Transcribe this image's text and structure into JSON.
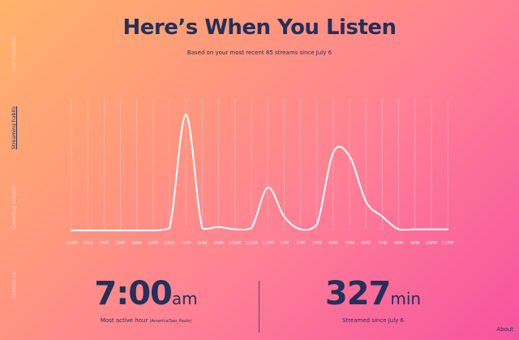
{
  "nav": {
    "items": [
      {
        "label": "Your Favorites",
        "active": false
      },
      {
        "label": "Streaming habits",
        "active": true
      },
      {
        "label": "Listening insights",
        "active": false
      },
      {
        "label": "Contact us",
        "active": false
      }
    ]
  },
  "header": {
    "title": "Here’s When You Listen",
    "subtitle": "Based on your most recent 85 streams since July 6"
  },
  "chart_data": {
    "type": "area",
    "categories": [
      "12AM",
      "1AM",
      "2AM",
      "3AM",
      "4AM",
      "5AM",
      "6AM",
      "7AM",
      "8AM",
      "9AM",
      "10AM",
      "11AM",
      "12PM",
      "1PM",
      "2PM",
      "3PM",
      "4PM",
      "5PM",
      "6PM",
      "7PM",
      "8PM",
      "9PM",
      "10PM",
      "11PM"
    ],
    "values": [
      0,
      0,
      0,
      0,
      0,
      0,
      0.02,
      1.0,
      0.02,
      0.03,
      0.01,
      0.02,
      0.37,
      0.12,
      0.01,
      0.05,
      0.67,
      0.64,
      0.25,
      0.12,
      0.01,
      0.01,
      0.01,
      0.01
    ],
    "ylim": [
      0,
      1
    ],
    "grid": true
  },
  "stats": {
    "hour": {
      "value": "7:00",
      "unit": "am",
      "label": "Most active hour",
      "detail": "(America/Sao_Paulo)"
    },
    "minutes": {
      "value": "327",
      "unit": "min",
      "label": "Streamed since July 6"
    }
  },
  "footer": {
    "about": "About"
  },
  "colors": {
    "text": "#23305a",
    "line": "#ffffff"
  }
}
